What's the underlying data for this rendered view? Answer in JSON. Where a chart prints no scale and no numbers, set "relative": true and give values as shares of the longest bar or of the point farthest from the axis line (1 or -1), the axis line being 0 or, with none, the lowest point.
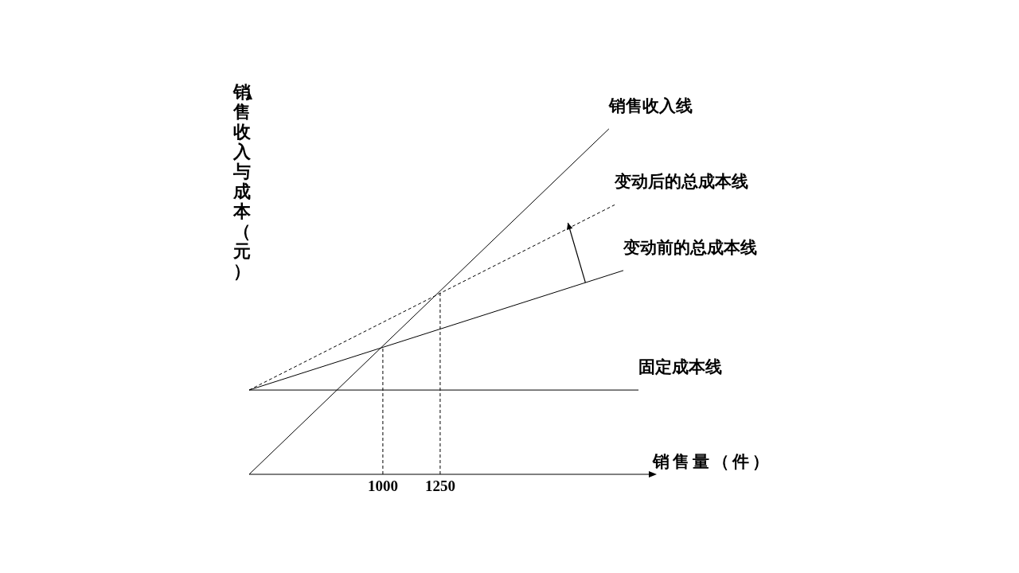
{
  "chart_data": {
    "type": "line",
    "xlabel": "销售量（件）",
    "ylabel": "销售收入与成本（元）",
    "relative": true,
    "xlim": [
      417,
      2160
    ],
    "xticks": [
      1000,
      1250
    ],
    "tick_labels": "x",
    "marker": "none",
    "series": [
      {
        "name": "销售收入线",
        "color": "#000000",
        "x": [
          417,
          1986
        ],
        "values": [
          0,
          1
        ],
        "line_style": "solid"
      },
      {
        "name": "变动后的总成本线",
        "color": "#000000",
        "x": [
          417,
          2011
        ],
        "values": [
          0.244,
          0.78
        ],
        "line_style": "dashed"
      },
      {
        "name": "变动前的总成本线",
        "color": "#000000",
        "x": [
          417,
          2049
        ],
        "values": [
          0.244,
          0.59
        ],
        "line_style": "solid"
      },
      {
        "name": "固定成本线",
        "color": "#000000",
        "x": [
          417,
          2115
        ],
        "values": [
          0.244,
          0.244
        ],
        "line_style": "solid"
      },
      {
        "color": "#000000",
        "x": [
          1000,
          1000
        ],
        "values": [
          0,
          0.37
        ],
        "line_style": "dashed"
      },
      {
        "color": "#000000",
        "x": [
          1250,
          1250
        ],
        "values": [
          0,
          0.53
        ],
        "line_style": "dashed"
      }
    ]
  }
}
